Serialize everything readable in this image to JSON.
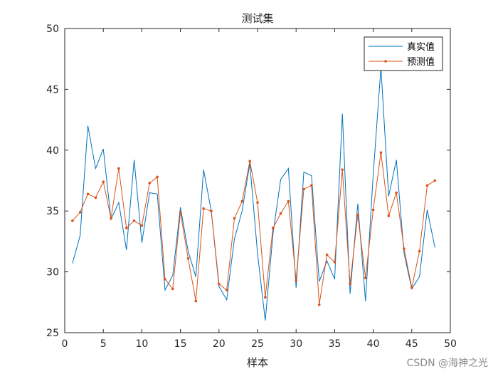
{
  "chart_data": {
    "type": "line",
    "title": "测试集",
    "xlabel": "样本",
    "ylabel": "",
    "xlim": [
      0,
      50
    ],
    "ylim": [
      25,
      50
    ],
    "xticks": [
      "0",
      "5",
      "10",
      "15",
      "20",
      "25",
      "30",
      "35",
      "40",
      "45",
      "50"
    ],
    "yticks": [
      "25",
      "30",
      "35",
      "40",
      "45",
      "50"
    ],
    "grid": false,
    "legend_position": "top-right",
    "x": [
      1,
      2,
      3,
      4,
      5,
      6,
      7,
      8,
      9,
      10,
      11,
      12,
      13,
      14,
      15,
      16,
      17,
      18,
      19,
      20,
      21,
      22,
      23,
      24,
      25,
      26,
      27,
      28,
      29,
      30,
      31,
      32,
      33,
      34,
      35,
      36,
      37,
      38,
      39,
      40,
      41,
      42,
      43,
      44,
      45,
      46,
      47,
      48
    ],
    "series": [
      {
        "name": "真实值",
        "color": "#0072BD",
        "marker": "none",
        "values": [
          30.7,
          33.0,
          42.0,
          38.5,
          40.1,
          34.3,
          35.7,
          31.8,
          39.2,
          32.4,
          36.5,
          36.4,
          28.5,
          29.7,
          35.3,
          31.7,
          29.6,
          38.4,
          35.0,
          28.8,
          27.7,
          32.7,
          35.0,
          38.9,
          31.5,
          26.0,
          33.1,
          37.6,
          38.5,
          28.7,
          38.2,
          37.9,
          29.2,
          30.9,
          29.4,
          43.0,
          28.2,
          35.6,
          27.6,
          38.0,
          46.8,
          36.2,
          39.2,
          31.5,
          28.6,
          29.6,
          35.1,
          32.0
        ]
      },
      {
        "name": "预测值",
        "color": "#D95319",
        "marker": "dot",
        "values": [
          34.2,
          34.9,
          36.4,
          36.1,
          37.4,
          34.4,
          38.5,
          33.6,
          34.2,
          33.8,
          37.3,
          37.8,
          29.4,
          28.6,
          34.9,
          31.1,
          27.6,
          35.2,
          35.0,
          29.0,
          28.5,
          34.4,
          35.8,
          39.1,
          35.7,
          27.9,
          33.6,
          34.8,
          35.8,
          29.3,
          36.8,
          37.1,
          27.3,
          31.4,
          30.8,
          38.4,
          29.0,
          34.7,
          29.5,
          35.1,
          39.8,
          34.6,
          36.5,
          31.9,
          28.7,
          31.7,
          37.1,
          37.5
        ]
      }
    ]
  },
  "watermark": "CSDN @海神之光"
}
